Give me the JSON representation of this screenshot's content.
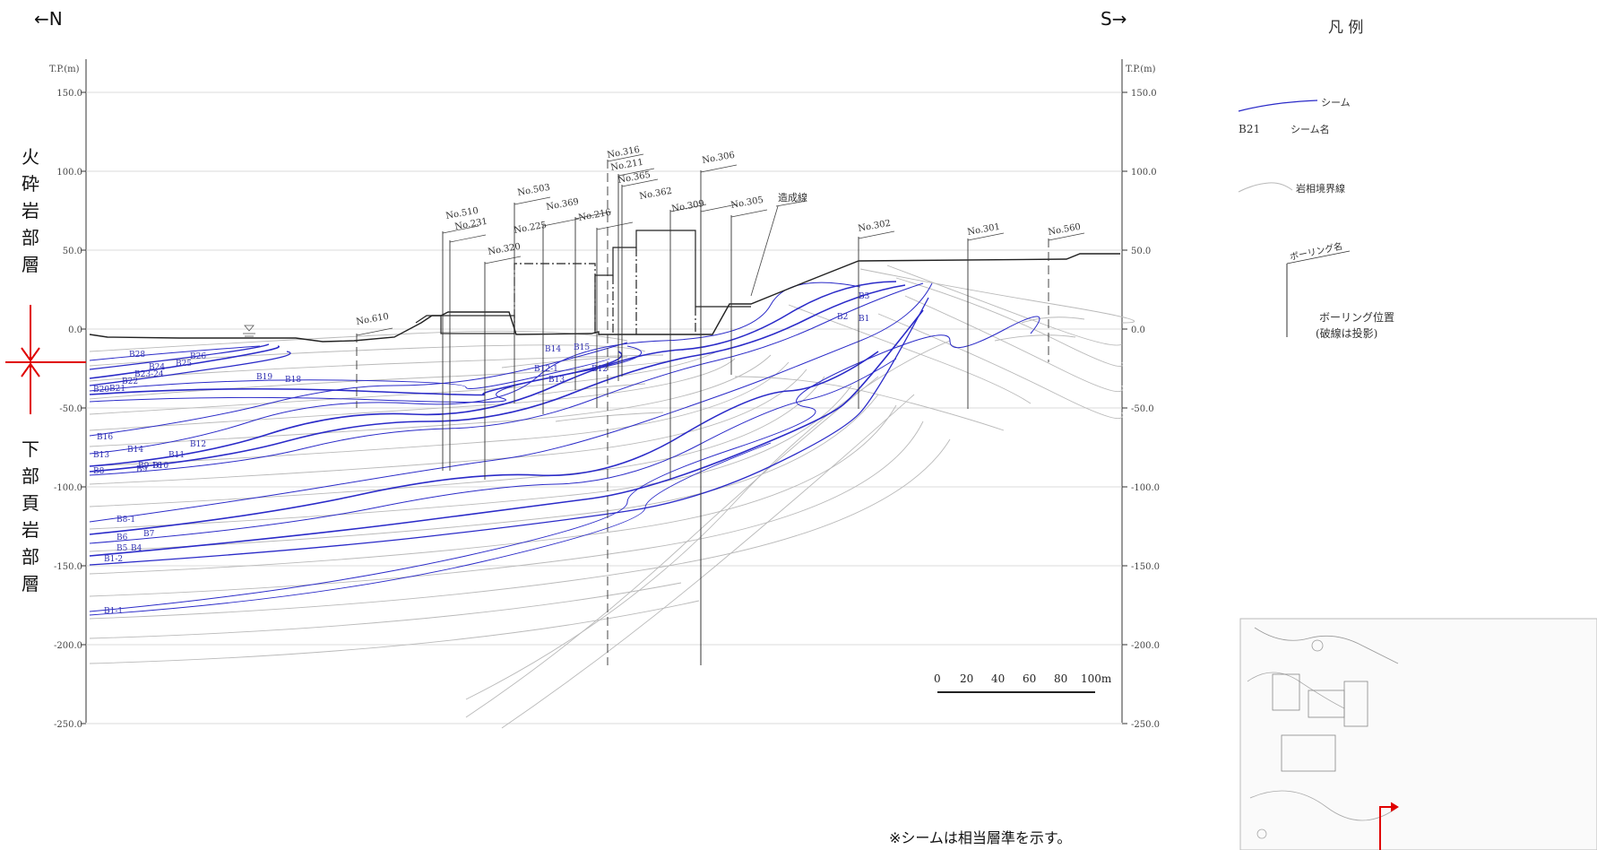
{
  "compass": {
    "left": "←N",
    "right": "S→"
  },
  "axis": {
    "unit_label": "T.P.(m)",
    "ticks": [
      "150.0",
      "100.0",
      "50.0",
      "0.0",
      "-50.0",
      "-100.0",
      "-150.0",
      "-200.0",
      "-250.0"
    ]
  },
  "strata": {
    "upper": "火砕岩部層",
    "lower": "下部頁岩部層"
  },
  "boreholes": [
    "No.610",
    "No.510",
    "No.231",
    "No.320",
    "No.503",
    "No.225",
    "No.369",
    "No.216",
    "No.316",
    "No.211",
    "No.365",
    "No.362",
    "No.309",
    "No.306",
    "No.305",
    "No.302",
    "No.301",
    "No.560"
  ],
  "annotations": {
    "grading_line": "造成線"
  },
  "seams": [
    "B28",
    "B26",
    "B25",
    "B24",
    "B23-24",
    "B22",
    "B21",
    "B20",
    "B19",
    "B18",
    "B16",
    "B14",
    "B13",
    "B12",
    "B11",
    "B10",
    "B9-10",
    "B9",
    "B8",
    "B8-1",
    "B7",
    "B6",
    "B5",
    "B4",
    "B3",
    "B2",
    "B1",
    "B1-1",
    "B1-2",
    "B12-1",
    "B15",
    "B14",
    "B13",
    "B12"
  ],
  "scale_bar": {
    "labels": [
      "0",
      "20",
      "40",
      "60",
      "80",
      "100m"
    ]
  },
  "legend": {
    "title": "凡 例",
    "items": [
      {
        "symbol": "seam-line",
        "label": "シーム"
      },
      {
        "symbol": "B21",
        "label": "シーム名"
      },
      {
        "symbol": "boundary-line",
        "label": "岩相境界線"
      },
      {
        "symbol": "borehole-name",
        "text": "ボーリング名"
      },
      {
        "symbol": "borehole-position",
        "label": "ボーリング位置",
        "sublabel": "(破線は投影)"
      }
    ]
  },
  "footnote": "※シームは相当層準を示す。",
  "colors": {
    "seam": "#2020c0",
    "boundary": "#b8b8b8",
    "marker": "#e00000",
    "ground": "#222222"
  }
}
